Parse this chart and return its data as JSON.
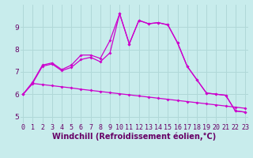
{
  "xlabel": "Windchill (Refroidissement éolien,°C)",
  "bg_color": "#c8ecec",
  "grid_color": "#b0d8d8",
  "line_color": "#cc00cc",
  "x_ticks": [
    0,
    1,
    2,
    3,
    4,
    5,
    6,
    7,
    8,
    9,
    10,
    11,
    12,
    13,
    14,
    15,
    16,
    17,
    18,
    19,
    20,
    21,
    22,
    23
  ],
  "y_ticks": [
    5,
    6,
    7,
    8,
    9
  ],
  "ylim": [
    4.7,
    10.0
  ],
  "xlim": [
    -0.3,
    23.3
  ],
  "line1_x": [
    0,
    1,
    2,
    3,
    4,
    5,
    6,
    7,
    8,
    9,
    10,
    11,
    12,
    13,
    14,
    15,
    16,
    17,
    18,
    19,
    20,
    21,
    22,
    23
  ],
  "line1_y": [
    6.0,
    6.55,
    7.3,
    7.4,
    7.1,
    7.3,
    7.75,
    7.75,
    7.6,
    8.4,
    9.6,
    8.25,
    9.3,
    9.15,
    9.2,
    9.1,
    8.3,
    7.25,
    6.65,
    6.05,
    6.0,
    5.95,
    5.25,
    5.2
  ],
  "line2_x": [
    0,
    1,
    2,
    3,
    4,
    5,
    6,
    7,
    8,
    9,
    10,
    11,
    12,
    13,
    14,
    15,
    16,
    17,
    18,
    19,
    20,
    21,
    22,
    23
  ],
  "line2_y": [
    6.0,
    6.5,
    7.25,
    7.35,
    7.05,
    7.2,
    7.55,
    7.65,
    7.45,
    7.85,
    9.6,
    8.25,
    9.3,
    9.15,
    9.2,
    9.1,
    8.3,
    7.25,
    6.65,
    6.05,
    6.0,
    5.95,
    5.25,
    5.2
  ],
  "line3_x": [
    0,
    1,
    2,
    3,
    4,
    5,
    6,
    7,
    8,
    9,
    10,
    11,
    12,
    13,
    14,
    15,
    16,
    17,
    18,
    19,
    20,
    21,
    22,
    23
  ],
  "line3_y": [
    6.0,
    6.48,
    6.43,
    6.38,
    6.33,
    6.28,
    6.22,
    6.17,
    6.12,
    6.07,
    6.02,
    5.97,
    5.92,
    5.87,
    5.82,
    5.77,
    5.72,
    5.67,
    5.62,
    5.57,
    5.52,
    5.47,
    5.42,
    5.37
  ],
  "tick_fontsize": 6.0,
  "label_fontsize": 7.0,
  "marker_size": 2.0,
  "line_width": 0.9
}
